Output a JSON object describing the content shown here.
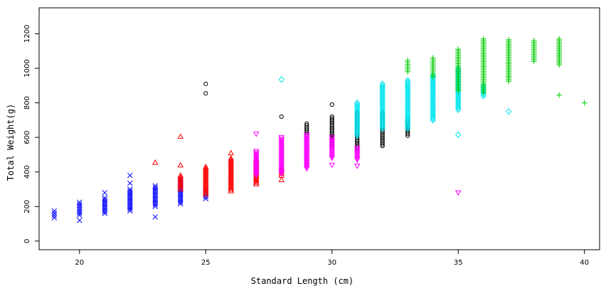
{
  "chart_data": {
    "type": "scatter",
    "title": "",
    "xlabel": "Standard Length (cm)",
    "ylabel": "Total Weight(g)",
    "xlim": [
      18.4,
      40.6
    ],
    "ylim": [
      -50,
      1350
    ],
    "x_ticks": [
      20,
      25,
      30,
      35,
      40
    ],
    "y_ticks": [
      0,
      200,
      400,
      600,
      800,
      1000,
      1200
    ],
    "grid": false,
    "legend": "none",
    "series": [
      {
        "marker": "x",
        "color": "#0000ff",
        "points": [
          {
            "x": 19,
            "min": 135,
            "max": 175,
            "outliers": []
          },
          {
            "x": 20,
            "min": 150,
            "max": 225,
            "outliers": [
              120
            ]
          },
          {
            "x": 21,
            "min": 160,
            "max": 250,
            "outliers": [
              280
            ]
          },
          {
            "x": 22,
            "min": 175,
            "max": 300,
            "outliers": [
              335,
              380
            ]
          },
          {
            "x": 23,
            "min": 200,
            "max": 320,
            "outliers": [
              140
            ]
          },
          {
            "x": 24,
            "min": 215,
            "max": 360,
            "outliers": []
          },
          {
            "x": 25,
            "min": 245,
            "max": 290,
            "outliers": []
          }
        ]
      },
      {
        "marker": "triangle-up",
        "color": "#ff0000",
        "points": [
          {
            "x": 23,
            "min": 455,
            "max": 455,
            "outliers": []
          },
          {
            "x": 24,
            "min": 300,
            "max": 380,
            "outliers": [
              440,
              605
            ]
          },
          {
            "x": 25,
            "min": 270,
            "max": 430,
            "outliers": []
          },
          {
            "x": 26,
            "min": 290,
            "max": 480,
            "outliers": [
              510
            ]
          },
          {
            "x": 27,
            "min": 330,
            "max": 470,
            "outliers": []
          },
          {
            "x": 28,
            "min": 380,
            "max": 420,
            "outliers": [
              355
            ]
          }
        ]
      },
      {
        "marker": "circle",
        "color": "#000000",
        "points": [
          {
            "x": 25,
            "min": 855,
            "max": 855,
            "outliers": [
              910
            ]
          },
          {
            "x": 28,
            "min": 720,
            "max": 720,
            "outliers": []
          },
          {
            "x": 29,
            "min": 620,
            "max": 680,
            "outliers": []
          },
          {
            "x": 30,
            "min": 540,
            "max": 720,
            "outliers": [
              790
            ]
          },
          {
            "x": 31,
            "min": 520,
            "max": 740,
            "outliers": []
          },
          {
            "x": 32,
            "min": 550,
            "max": 740,
            "outliers": []
          },
          {
            "x": 33,
            "min": 610,
            "max": 700,
            "outliers": []
          }
        ]
      },
      {
        "marker": "triangle-down",
        "color": "#ff00ff",
        "points": [
          {
            "x": 27,
            "min": 380,
            "max": 520,
            "outliers": [
              620
            ]
          },
          {
            "x": 28,
            "min": 390,
            "max": 600,
            "outliers": []
          },
          {
            "x": 29,
            "min": 420,
            "max": 615,
            "outliers": []
          },
          {
            "x": 30,
            "min": 480,
            "max": 600,
            "outliers": [
              440
            ]
          },
          {
            "x": 31,
            "min": 470,
            "max": 540,
            "outliers": [
              435
            ]
          },
          {
            "x": 35,
            "min": 280,
            "max": 280,
            "outliers": []
          }
        ]
      },
      {
        "marker": "diamond",
        "color": "#00e5ee",
        "points": [
          {
            "x": 28,
            "min": 935,
            "max": 935,
            "outliers": []
          },
          {
            "x": 31,
            "min": 610,
            "max": 800,
            "outliers": []
          },
          {
            "x": 32,
            "min": 650,
            "max": 910,
            "outliers": []
          },
          {
            "x": 33,
            "min": 650,
            "max": 930,
            "outliers": []
          },
          {
            "x": 34,
            "min": 700,
            "max": 960,
            "outliers": []
          },
          {
            "x": 35,
            "min": 760,
            "max": 1000,
            "outliers": [
              615
            ]
          },
          {
            "x": 36,
            "min": 840,
            "max": 900,
            "outliers": []
          },
          {
            "x": 37,
            "min": 750,
            "max": 750,
            "outliers": []
          }
        ]
      },
      {
        "marker": "plus",
        "color": "#00cc00",
        "points": [
          {
            "x": 33,
            "min": 980,
            "max": 1045,
            "outliers": []
          },
          {
            "x": 34,
            "min": 950,
            "max": 1060,
            "outliers": []
          },
          {
            "x": 35,
            "min": 870,
            "max": 1110,
            "outliers": []
          },
          {
            "x": 36,
            "min": 860,
            "max": 1170,
            "outliers": []
          },
          {
            "x": 37,
            "min": 925,
            "max": 1165,
            "outliers": []
          },
          {
            "x": 38,
            "min": 1040,
            "max": 1160,
            "outliers": []
          },
          {
            "x": 39,
            "min": 1020,
            "max": 1170,
            "outliers": [
              845
            ]
          },
          {
            "x": 40,
            "min": 800,
            "max": 800,
            "outliers": []
          }
        ]
      }
    ]
  }
}
